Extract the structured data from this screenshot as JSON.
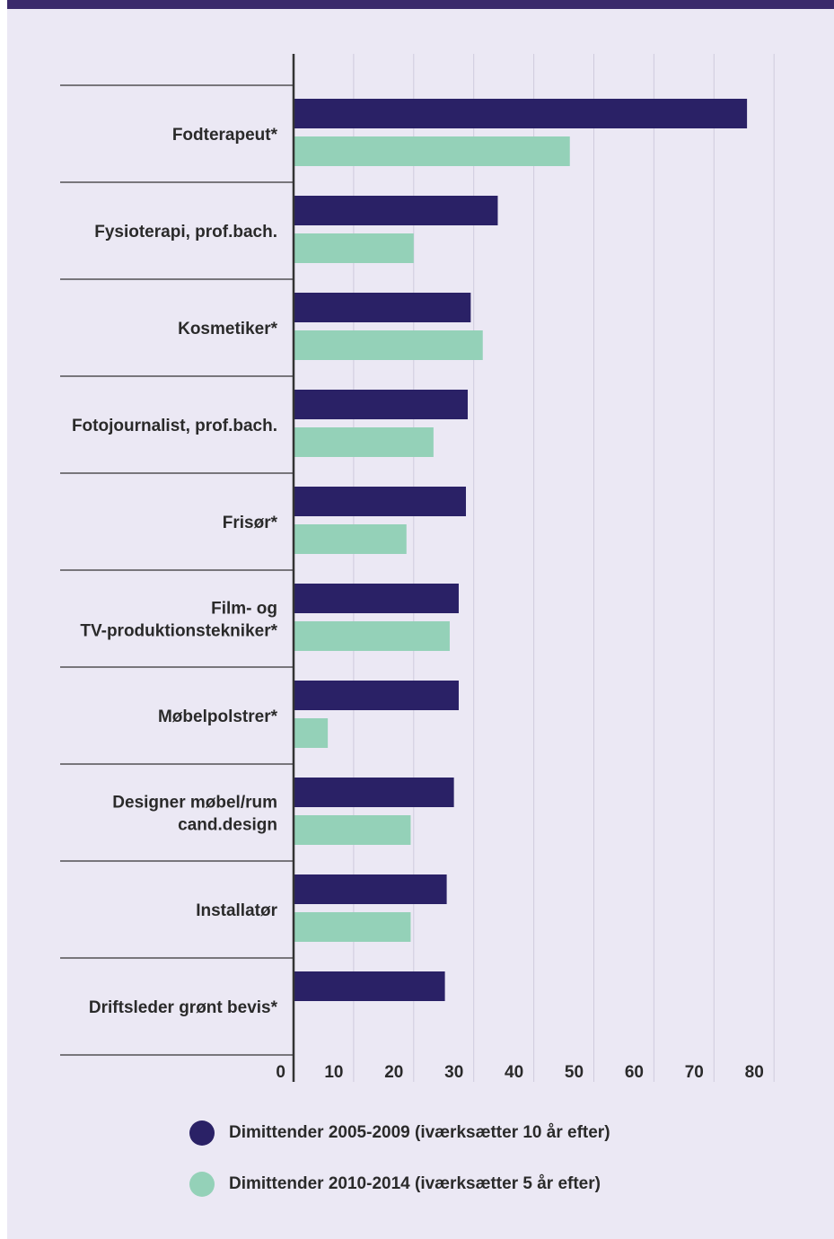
{
  "colors": {
    "series_1": "#2a2166",
    "series_2": "#94d1b8",
    "background": "#ebe8f4",
    "grid": "#cfcbdd",
    "axis": "#333333"
  },
  "chart_data": {
    "type": "bar",
    "orientation": "horizontal",
    "categories": [
      "Fodterapeut*",
      "Fysioterapi, prof.bach.",
      "Kosmetiker*",
      "Fotojournalist, prof.bach.",
      "Frisør*",
      "Film- og\nTV-produktionstekniker*",
      "Møbelpolstrer*",
      "Designer møbel/rum\ncand.design",
      "Installatør",
      "Driftsleder grønt bevis*"
    ],
    "series": [
      {
        "name": "Dimittender 2005-2009 (iværksætter 10 år efter)",
        "values": [
          75.5,
          34,
          29.5,
          29,
          28.7,
          27.5,
          27.5,
          26.7,
          25.5,
          25.2
        ]
      },
      {
        "name": "Dimittender 2010-2014 (iværksætter 5 år efter)",
        "values": [
          46,
          20,
          31.5,
          23.3,
          18.8,
          26,
          5.7,
          19.5,
          19.5,
          0
        ]
      }
    ],
    "xticks": [
      "0",
      "10",
      "20",
      "30",
      "40",
      "50",
      "60",
      "70",
      "80"
    ],
    "xlim": [
      0,
      80
    ],
    "grid": true,
    "legend_position": "bottom"
  },
  "legend": [
    {
      "label": "Dimittender 2005-2009 (iværksætter 10 år efter)"
    },
    {
      "label": "Dimittender 2010-2014 (iværksætter 5 år efter)"
    }
  ]
}
